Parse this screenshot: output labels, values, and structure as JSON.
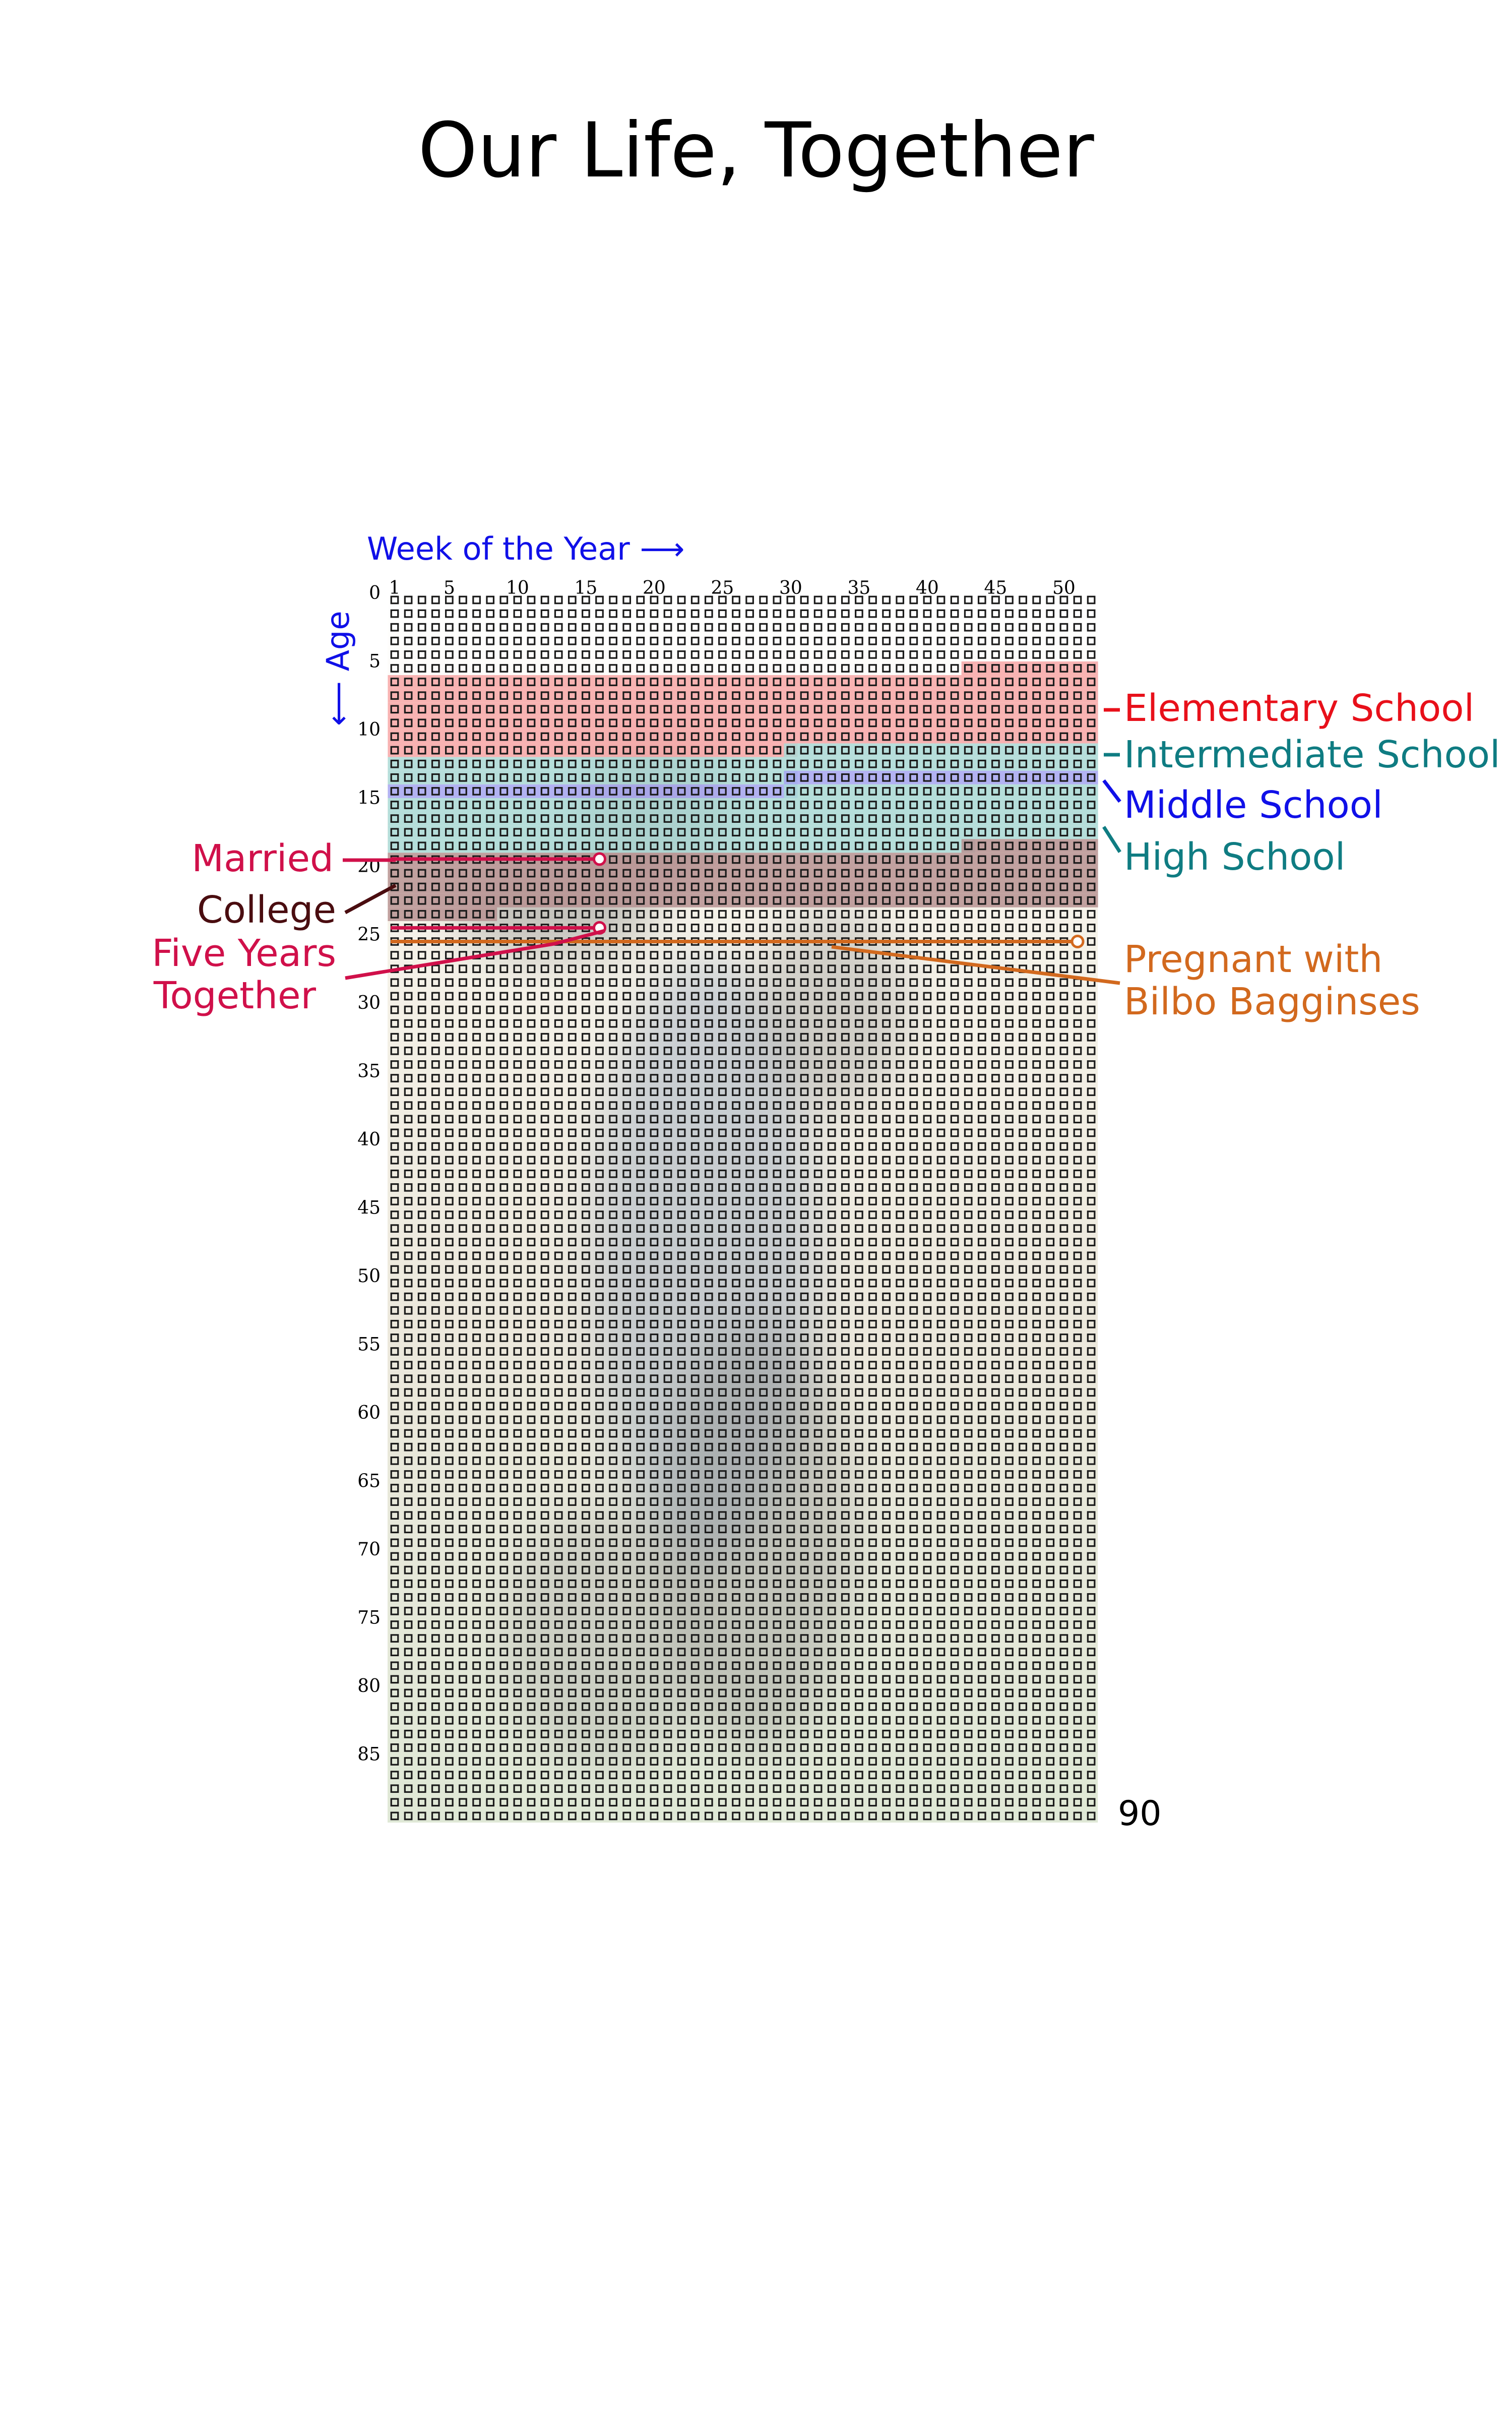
{
  "title": "Our Life, Together",
  "chart_data": {
    "type": "heatmap",
    "title": "Our Life, Together",
    "xlabel": "Week of the Year ⟶",
    "ylabel": "⟵ Age",
    "weeks_per_year": 52,
    "years": 90,
    "x_ticks": [
      1,
      5,
      10,
      15,
      20,
      25,
      30,
      35,
      40,
      45,
      50
    ],
    "y_ticks": [
      0,
      5,
      10,
      15,
      20,
      25,
      30,
      35,
      40,
      45,
      50,
      55,
      60,
      65,
      70,
      75,
      80,
      85
    ],
    "end_label": "90",
    "periods": [
      {
        "name": "Elementary School",
        "color": "#e8101a",
        "fill": "#f7a6a6",
        "start": {
          "age": 5,
          "week": 43
        },
        "end": {
          "age": 11,
          "week": 30
        }
      },
      {
        "name": "Intermediate School",
        "color": "#0f7c82",
        "fill": "#a9d9d6",
        "start": {
          "age": 11,
          "week": 30
        },
        "end": {
          "age": 13,
          "week": 30
        }
      },
      {
        "name": "Middle School",
        "color": "#1010e8",
        "fill": "#a6a6f2",
        "start": {
          "age": 13,
          "week": 30
        },
        "end": {
          "age": 14,
          "week": 30
        }
      },
      {
        "name": "High School",
        "color": "#0f7c82",
        "fill": "#a9d9d6",
        "start": {
          "age": 14,
          "week": 30
        },
        "end": {
          "age": 18,
          "week": 43
        }
      },
      {
        "name": "College",
        "color": "#4a0d10",
        "fill": "#b79292",
        "start": {
          "age": 18,
          "week": 43
        },
        "end": {
          "age": 23,
          "week": 8
        }
      }
    ],
    "events": [
      {
        "name": "Married",
        "color": "#d0104a",
        "age": 19,
        "week": 16
      },
      {
        "name": "Five Years Together",
        "color": "#d0104a",
        "age": 24,
        "week": 16
      },
      {
        "name": "Pregnant with Bilbo Bagginses",
        "color": "#d2691e",
        "start": {
          "age": 25,
          "week": 16
        },
        "end": {
          "age": 25,
          "week": 51
        }
      }
    ],
    "annotations": {
      "elementary": [
        "Elementary School"
      ],
      "intermediate": [
        "Intermediate School"
      ],
      "middle": [
        "Middle School"
      ],
      "high": [
        "High School"
      ],
      "married": [
        "Married"
      ],
      "college": [
        "College"
      ],
      "five_years": [
        "Five Years",
        "Together"
      ],
      "pregnant": [
        "Pregnant with",
        "Bilbo Bagginses"
      ]
    },
    "colors": {
      "title": "#000000",
      "axis_label": "#1010e8",
      "grid_box": "#1a1a1a",
      "background_tint": "#e4ead8"
    }
  }
}
